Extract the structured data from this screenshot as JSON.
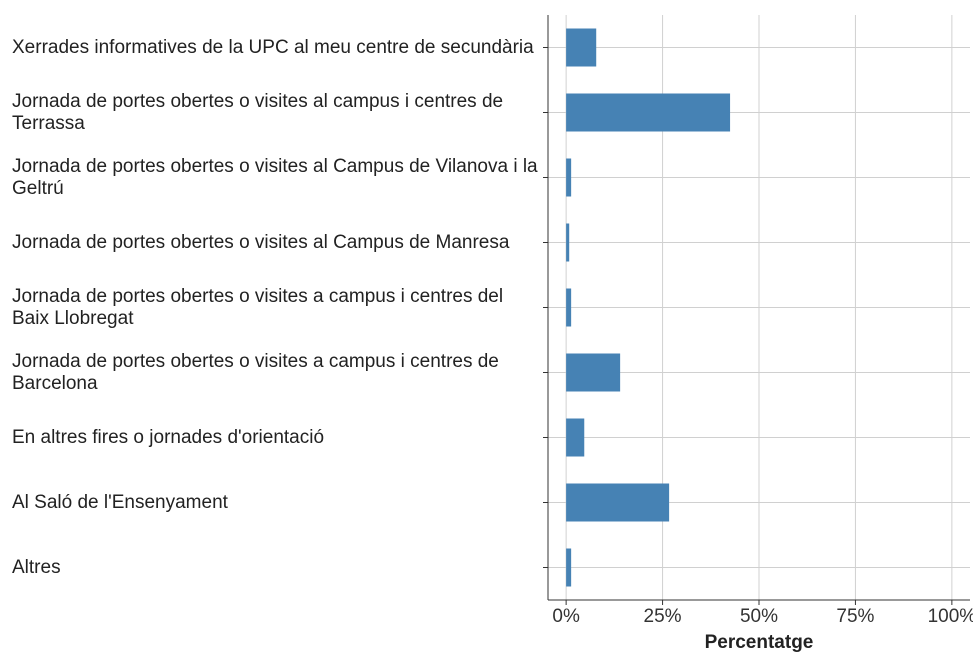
{
  "chart_data": {
    "type": "bar",
    "orientation": "horizontal",
    "x_label": "Percentatge",
    "categories": [
      "Xerrades informatives de la UPC al meu centre de secundària",
      "Jornada de portes obertes o visites al campus i centres de Terrassa",
      "Jornada de portes obertes o visites al Campus de Vilanova i la Geltrú",
      "Jornada de portes obertes o visites al Campus de Manresa",
      "Jornada de portes obertes o visites a campus i centres del Baix Llobregat",
      "Jornada de portes obertes o visites a campus i centres de Barcelona",
      "En altres fires o jornades d'orientació",
      "Al Saló de l'Ensenyament",
      "Altres"
    ],
    "values": [
      7.8,
      42.5,
      1.3,
      0.8,
      1.3,
      14.0,
      4.7,
      26.7,
      1.3
    ],
    "color": "#4682b4",
    "xlim": [
      -4.7,
      104.7
    ],
    "xticks": [
      {
        "value": 0,
        "label": "0%"
      },
      {
        "value": 25,
        "label": "25%"
      },
      {
        "value": 50,
        "label": "50%"
      },
      {
        "value": 75,
        "label": "75%"
      },
      {
        "value": 100,
        "label": "100%"
      }
    ],
    "grid": true
  }
}
